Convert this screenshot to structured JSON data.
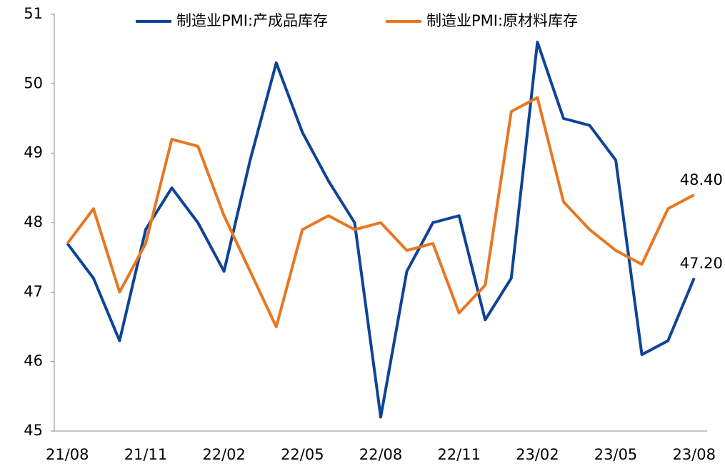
{
  "chart_data": {
    "type": "line",
    "categories": [
      "21/08",
      null,
      null,
      "21/11",
      null,
      null,
      "22/02",
      null,
      null,
      "22/05",
      null,
      null,
      "22/08",
      null,
      null,
      "22/11",
      null,
      null,
      "23/02",
      null,
      null,
      "23/05",
      null,
      null,
      "23/08"
    ],
    "series": [
      {
        "name": "制造业PMI:产成品库存",
        "color": "#0e4496",
        "values": [
          47.7,
          47.2,
          46.3,
          47.9,
          48.5,
          48.0,
          47.3,
          48.9,
          50.3,
          49.3,
          48.6,
          48.0,
          45.2,
          47.3,
          48.0,
          48.1,
          46.6,
          47.2,
          50.6,
          49.5,
          49.4,
          48.9,
          46.1,
          46.3,
          47.2
        ],
        "value_labels": [
          null,
          null,
          null,
          null,
          null,
          null,
          null,
          null,
          null,
          null,
          null,
          null,
          null,
          null,
          null,
          null,
          null,
          null,
          null,
          null,
          null,
          null,
          null,
          null,
          "47.20"
        ]
      },
      {
        "name": "制造业PMI:原材料库存",
        "color": "#e87722",
        "values": [
          47.7,
          48.2,
          47.0,
          47.7,
          49.2,
          49.1,
          48.1,
          47.3,
          46.5,
          47.9,
          48.1,
          47.9,
          48.0,
          47.6,
          47.7,
          46.7,
          47.1,
          49.6,
          49.8,
          48.3,
          47.9,
          47.6,
          47.4,
          48.2,
          48.4
        ],
        "value_labels": [
          null,
          null,
          null,
          null,
          null,
          null,
          null,
          null,
          null,
          null,
          null,
          null,
          null,
          null,
          null,
          null,
          null,
          null,
          null,
          null,
          null,
          null,
          null,
          null,
          "48.40"
        ]
      }
    ],
    "ylim": [
      45,
      51
    ],
    "yticks": [
      45,
      46,
      47,
      48,
      49,
      50,
      51
    ],
    "grid": false,
    "legend": "top"
  }
}
